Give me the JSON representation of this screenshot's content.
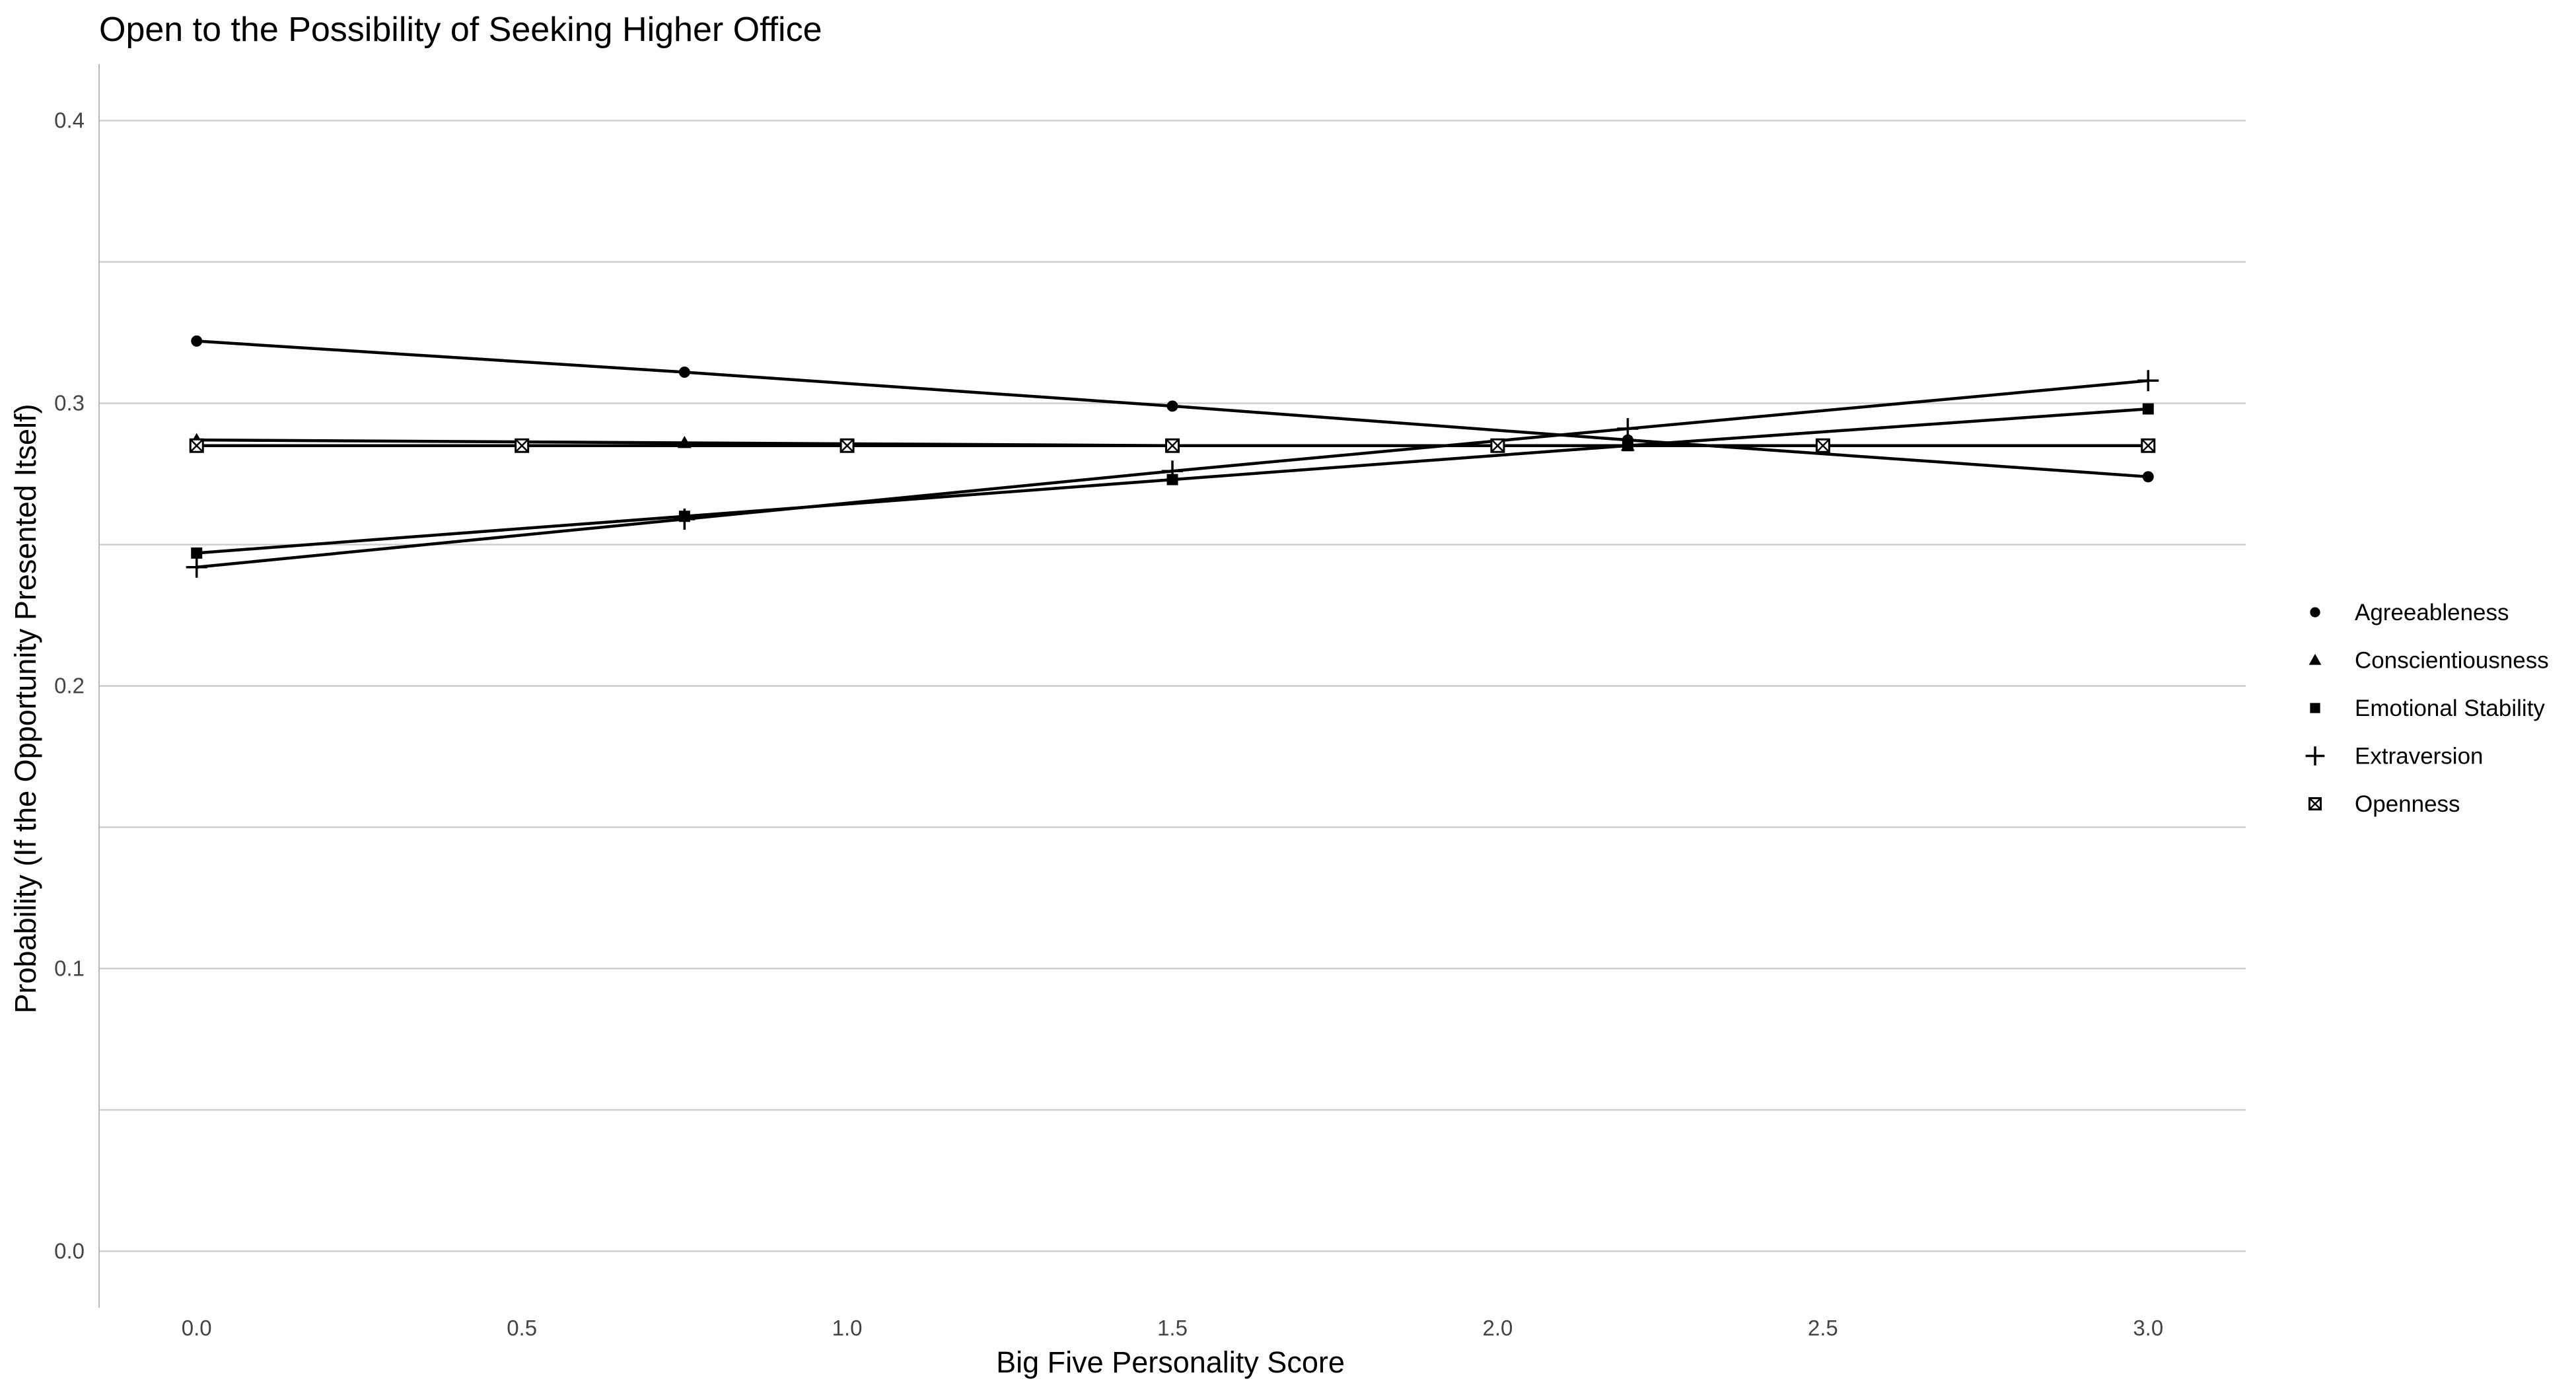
{
  "chart_data": {
    "type": "line",
    "title": "Open to the Possibility of Seeking Higher Office",
    "xlabel": "Big Five Personality Score",
    "ylabel": "Probability (If the Opportunity Presented Itself)",
    "xlim": [
      -0.15,
      3.15
    ],
    "ylim": [
      -0.02,
      0.42
    ],
    "x_ticks": [
      {
        "value": 0.0,
        "label": "0.0"
      },
      {
        "value": 0.5,
        "label": "0.5"
      },
      {
        "value": 1.0,
        "label": "1.0"
      },
      {
        "value": 1.5,
        "label": "1.5"
      },
      {
        "value": 2.0,
        "label": "2.0"
      },
      {
        "value": 2.5,
        "label": "2.5"
      },
      {
        "value": 3.0,
        "label": "3.0"
      }
    ],
    "y_ticks": [
      {
        "value": 0.0,
        "label": "0.0"
      },
      {
        "value": 0.1,
        "label": "0.1"
      },
      {
        "value": 0.2,
        "label": "0.2"
      },
      {
        "value": 0.3,
        "label": "0.3"
      },
      {
        "value": 0.4,
        "label": "0.4"
      }
    ],
    "y_minor": [
      0.05,
      0.15,
      0.25,
      0.35
    ],
    "grid": "horizontal",
    "legend_position": "right",
    "line_color": "#000000",
    "series": [
      {
        "name": "Agreeableness",
        "shape": "circle",
        "x": [
          0.0,
          0.75,
          1.5,
          2.2,
          3.0
        ],
        "y": [
          0.322,
          0.311,
          0.299,
          0.287,
          0.274
        ]
      },
      {
        "name": "Conscientiousness",
        "shape": "triangle",
        "x": [
          0.0,
          0.75,
          1.5,
          2.2,
          3.0
        ],
        "y": [
          0.287,
          0.286,
          0.285,
          0.285,
          0.285
        ]
      },
      {
        "name": "Emotional Stability",
        "shape": "square",
        "x": [
          0.0,
          0.75,
          1.5,
          2.2,
          3.0
        ],
        "y": [
          0.247,
          0.26,
          0.273,
          0.285,
          0.298
        ]
      },
      {
        "name": "Extraversion",
        "shape": "plus",
        "x": [
          0.0,
          0.75,
          1.5,
          2.2,
          3.0
        ],
        "y": [
          0.242,
          0.259,
          0.276,
          0.291,
          0.308
        ]
      },
      {
        "name": "Openness",
        "shape": "boxcross",
        "x": [
          0.0,
          0.5,
          1.0,
          1.5,
          2.0,
          2.5,
          3.0
        ],
        "y": [
          0.285,
          0.285,
          0.285,
          0.285,
          0.285,
          0.285,
          0.285
        ]
      }
    ]
  }
}
